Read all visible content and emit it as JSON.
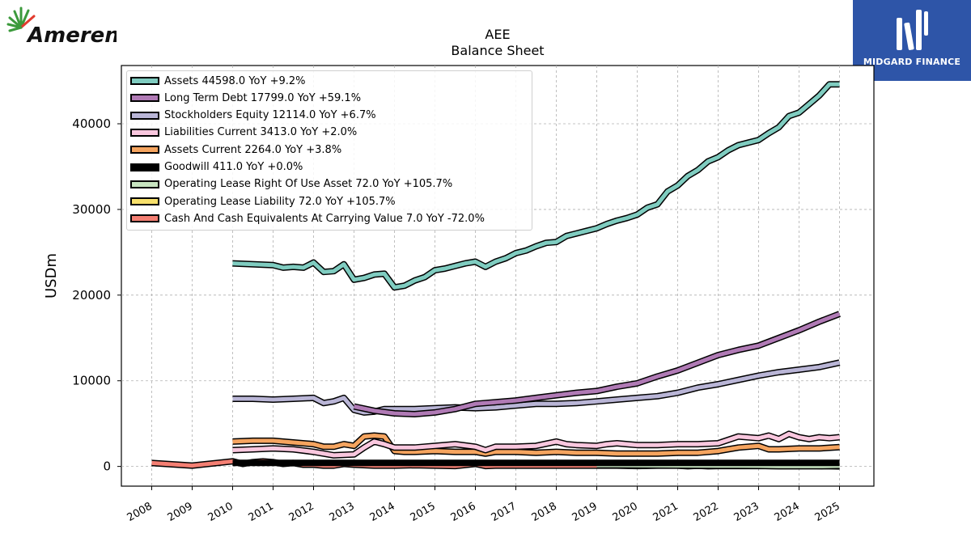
{
  "logos": {
    "left_text": "Ameren",
    "right_text": "MIDGARD FINANCE"
  },
  "chart_data": {
    "type": "line",
    "title": "AEE",
    "subtitle": "Balance  Sheet",
    "xlabel": "",
    "ylabel": "USDm",
    "xlim": [
      2007.25,
      2025.85
    ],
    "ylim": [
      -2300,
      46800
    ],
    "x_ticks": [
      "2008",
      "2009",
      "2010",
      "2011",
      "2012",
      "2013",
      "2014",
      "2015",
      "2016",
      "2017",
      "2018",
      "2019",
      "2020",
      "2021",
      "2022",
      "2023",
      "2024",
      "2025"
    ],
    "y_ticks": [
      0,
      10000,
      20000,
      30000,
      40000
    ],
    "grid": true,
    "legend_position": "top-left",
    "series": [
      {
        "name": "Assets",
        "label": "Assets  44598.0 YoY +9.2%",
        "color": "#7fccc0",
        "x": [
          2010,
          2011,
          2011.25,
          2011.5,
          2011.75,
          2012,
          2012.25,
          2012.5,
          2012.75,
          2013,
          2013.25,
          2013.5,
          2013.75,
          2014,
          2014.25,
          2014.5,
          2014.75,
          2015,
          2015.25,
          2015.5,
          2015.75,
          2016,
          2016.25,
          2016.5,
          2016.75,
          2017,
          2017.25,
          2017.5,
          2017.75,
          2018,
          2018.25,
          2018.5,
          2018.75,
          2019,
          2019.25,
          2019.5,
          2019.75,
          2020,
          2020.25,
          2020.5,
          2020.75,
          2021,
          2021.25,
          2021.5,
          2021.75,
          2022,
          2022.25,
          2022.5,
          2022.75,
          2023,
          2023.25,
          2023.5,
          2023.75,
          2024,
          2024.25,
          2024.5,
          2024.75,
          2025
        ],
        "y": [
          23700,
          23500,
          23200,
          23300,
          23200,
          23800,
          22700,
          22800,
          23600,
          21800,
          22000,
          22400,
          22500,
          20900,
          21100,
          21700,
          22100,
          22900,
          23100,
          23400,
          23700,
          23900,
          23300,
          23900,
          24300,
          24900,
          25200,
          25700,
          26100,
          26200,
          26900,
          27200,
          27500,
          27800,
          28300,
          28700,
          29000,
          29400,
          30200,
          30600,
          32100,
          32800,
          33900,
          34600,
          35600,
          36100,
          36900,
          37500,
          37800,
          38100,
          38900,
          39600,
          40900,
          41300,
          42300,
          43300,
          44600,
          44598
        ]
      },
      {
        "name": "Long Term Debt",
        "label": "Long Term Debt  17799.0 YoY +59.1%",
        "color": "#b07ab5",
        "x": [
          2013,
          2013.5,
          2014,
          2014.5,
          2015,
          2015.5,
          2016,
          2016.5,
          2017,
          2017.5,
          2018,
          2018.5,
          2019,
          2019.5,
          2020,
          2020.5,
          2021,
          2021.5,
          2022,
          2022.5,
          2023,
          2023.5,
          2024,
          2024.5,
          2025
        ],
        "y": [
          7000,
          6500,
          6200,
          6100,
          6300,
          6700,
          7300,
          7500,
          7700,
          8000,
          8300,
          8600,
          8800,
          9300,
          9700,
          10500,
          11200,
          12100,
          13000,
          13600,
          14100,
          15000,
          15900,
          16900,
          17799
        ]
      },
      {
        "name": "Stockholders Equity",
        "label": "Stockholders Equity  12114.0 YoY +6.7%",
        "color": "#b9b5d6",
        "x": [
          2010,
          2010.5,
          2011,
          2011.5,
          2012,
          2012.25,
          2012.5,
          2012.75,
          2013,
          2013.25,
          2013.5,
          2013.75,
          2014,
          2014.5,
          2015,
          2015.5,
          2016,
          2016.5,
          2017,
          2017.5,
          2018,
          2018.5,
          2019,
          2019.5,
          2020,
          2020.5,
          2021,
          2021.5,
          2022,
          2022.5,
          2023,
          2023.5,
          2024,
          2024.5,
          2025
        ],
        "y": [
          7900,
          7900,
          7800,
          7900,
          8000,
          7400,
          7600,
          8000,
          6600,
          6300,
          6400,
          6700,
          6700,
          6700,
          6800,
          6900,
          6800,
          6900,
          7100,
          7300,
          7300,
          7400,
          7600,
          7800,
          8000,
          8200,
          8600,
          9200,
          9600,
          10100,
          10600,
          11000,
          11300,
          11600,
          12114
        ]
      },
      {
        "name": "Liabilities Current",
        "label": "Liabilities Current  3413.0 YoY +2.0%",
        "color": "#f9c7de",
        "x": [
          2010,
          2010.5,
          2011,
          2011.5,
          2012,
          2012.5,
          2013,
          2013.25,
          2013.5,
          2013.75,
          2014,
          2014.5,
          2015,
          2015.5,
          2016,
          2016.25,
          2016.5,
          2017,
          2017.5,
          2018,
          2018.25,
          2018.5,
          2019,
          2019.25,
          2019.5,
          2019.75,
          2020,
          2020.5,
          2021,
          2021.5,
          2022,
          2022.5,
          2023,
          2023.25,
          2023.5,
          2023.75,
          2024,
          2024.25,
          2024.5,
          2024.75,
          2025
        ],
        "y": [
          1900,
          2000,
          2100,
          2000,
          1700,
          1300,
          1400,
          2200,
          2900,
          2600,
          2200,
          2200,
          2400,
          2600,
          2300,
          1900,
          2300,
          2300,
          2400,
          2900,
          2600,
          2500,
          2400,
          2600,
          2700,
          2600,
          2500,
          2500,
          2600,
          2600,
          2700,
          3500,
          3300,
          3600,
          3200,
          3800,
          3400,
          3200,
          3400,
          3300,
          3413
        ]
      },
      {
        "name": "Assets Current",
        "label": "Assets Current  2264.0 YoY +3.8%",
        "color": "#f5a45f",
        "x": [
          2010,
          2010.5,
          2011,
          2011.5,
          2012,
          2012.25,
          2012.5,
          2012.75,
          2013,
          2013.25,
          2013.5,
          2013.75,
          2014,
          2014.25,
          2014.5,
          2015,
          2015.5,
          2016,
          2016.25,
          2016.5,
          2017,
          2017.5,
          2018,
          2018.5,
          2019,
          2019.5,
          2020,
          2020.5,
          2021,
          2021.5,
          2022,
          2022.5,
          2023,
          2023.25,
          2023.5,
          2024,
          2024.5,
          2025
        ],
        "y": [
          2900,
          3000,
          3000,
          2800,
          2600,
          2300,
          2300,
          2600,
          2400,
          3500,
          3600,
          3500,
          1800,
          1700,
          1700,
          1800,
          1700,
          1700,
          1500,
          1700,
          1700,
          1600,
          1700,
          1600,
          1600,
          1500,
          1500,
          1500,
          1600,
          1600,
          1800,
          2200,
          2400,
          2000,
          2000,
          2100,
          2100,
          2264
        ]
      },
      {
        "name": "Goodwill",
        "label": "Goodwill  411.0 YoY +0.0%",
        "color": "#000000",
        "x": [
          2010,
          2011,
          2012,
          2013,
          2014,
          2015,
          2016,
          2017,
          2018,
          2019,
          2020,
          2021,
          2022,
          2023,
          2024,
          2025
        ],
        "y": [
          411,
          411,
          411,
          411,
          411,
          411,
          411,
          411,
          411,
          411,
          411,
          411,
          411,
          411,
          411,
          411
        ]
      },
      {
        "name": "Operating Lease Right Of Use Asset",
        "label": "Operating Lease Right Of Use Asset  72.0 YoY +105.7%",
        "color": "#c7e4c0",
        "x": [
          2019,
          2019.5,
          2020,
          2020.5,
          2021,
          2021.5,
          2022,
          2022.5,
          2023,
          2023.5,
          2024,
          2024.5,
          2025
        ],
        "y": [
          150,
          150,
          130,
          120,
          110,
          100,
          90,
          80,
          70,
          40,
          35,
          35,
          72
        ]
      },
      {
        "name": "Operating Lease Liability",
        "label": "Operating Lease Liability  72.0 YoY +105.7%",
        "color": "#f7e06b",
        "x": [
          2019,
          2019.5,
          2020,
          2020.5,
          2021,
          2021.5,
          2022,
          2022.5,
          2023,
          2023.5,
          2024,
          2024.5,
          2025
        ],
        "y": [
          150,
          150,
          130,
          120,
          110,
          100,
          90,
          80,
          70,
          40,
          35,
          35,
          72
        ]
      },
      {
        "name": "Cash And Cash Equivalents At Carrying Value",
        "label": "Cash And Cash Equivalents At Carrying Value  7.0 YoY -72.0%",
        "color": "#f47f73",
        "x": [
          2008,
          2009,
          2010,
          2010.25,
          2010.5,
          2010.75,
          2011,
          2011.25,
          2011.5,
          2011.75,
          2012,
          2012.25,
          2012.5,
          2012.75,
          2013,
          2013.5,
          2014,
          2014.5,
          2015,
          2015.5,
          2016,
          2016.25,
          2016.5,
          2017,
          2017.5,
          2018,
          2018.5,
          2019,
          2019.5,
          2020,
          2020.5,
          2021,
          2021.25,
          2021.5,
          2021.75,
          2022,
          2022.5,
          2023,
          2023.5,
          2024,
          2024.25,
          2024.5,
          2025
        ],
        "y": [
          400,
          100,
          600,
          300,
          500,
          600,
          500,
          300,
          400,
          200,
          200,
          100,
          100,
          300,
          200,
          100,
          100,
          150,
          100,
          50,
          300,
          50,
          100,
          100,
          100,
          100,
          100,
          100,
          100,
          50,
          100,
          100,
          20,
          80,
          20,
          50,
          50,
          50,
          50,
          50,
          100,
          50,
          7
        ]
      }
    ]
  }
}
